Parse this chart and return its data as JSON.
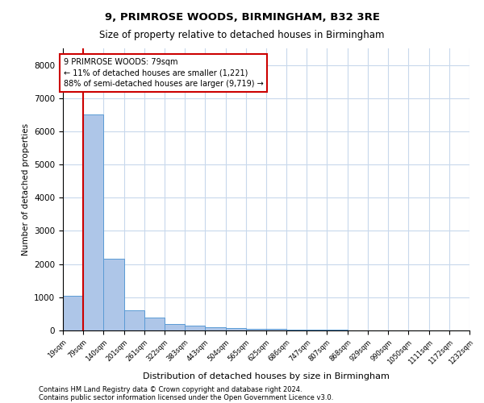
{
  "title1": "9, PRIMROSE WOODS, BIRMINGHAM, B32 3RE",
  "title2": "Size of property relative to detached houses in Birmingham",
  "xlabel": "Distribution of detached houses by size in Birmingham",
  "ylabel": "Number of detached properties",
  "footnote1": "Contains HM Land Registry data © Crown copyright and database right 2024.",
  "footnote2": "Contains public sector information licensed under the Open Government Licence v3.0.",
  "annotation_title": "9 PRIMROSE WOODS: 79sqm",
  "annotation_line1": "← 11% of detached houses are smaller (1,221)",
  "annotation_line2": "88% of semi-detached houses are larger (9,719) →",
  "property_size": 79,
  "bar_edges": [
    19,
    79,
    140,
    201,
    261,
    322,
    383,
    443,
    504,
    565,
    625,
    686,
    747,
    807,
    868,
    929,
    990,
    1050,
    1111,
    1172,
    1232
  ],
  "bar_heights": [
    1050,
    6500,
    2150,
    600,
    400,
    200,
    150,
    100,
    70,
    50,
    40,
    30,
    20,
    15,
    12,
    10,
    8,
    6,
    5,
    4
  ],
  "bar_color": "#aec6e8",
  "bar_edge_color": "#5b9bd5",
  "red_line_color": "#cc0000",
  "background_color": "#ffffff",
  "grid_color": "#c8d8ec",
  "ylim": [
    0,
    8500
  ],
  "yticks": [
    0,
    1000,
    2000,
    3000,
    4000,
    5000,
    6000,
    7000,
    8000
  ]
}
